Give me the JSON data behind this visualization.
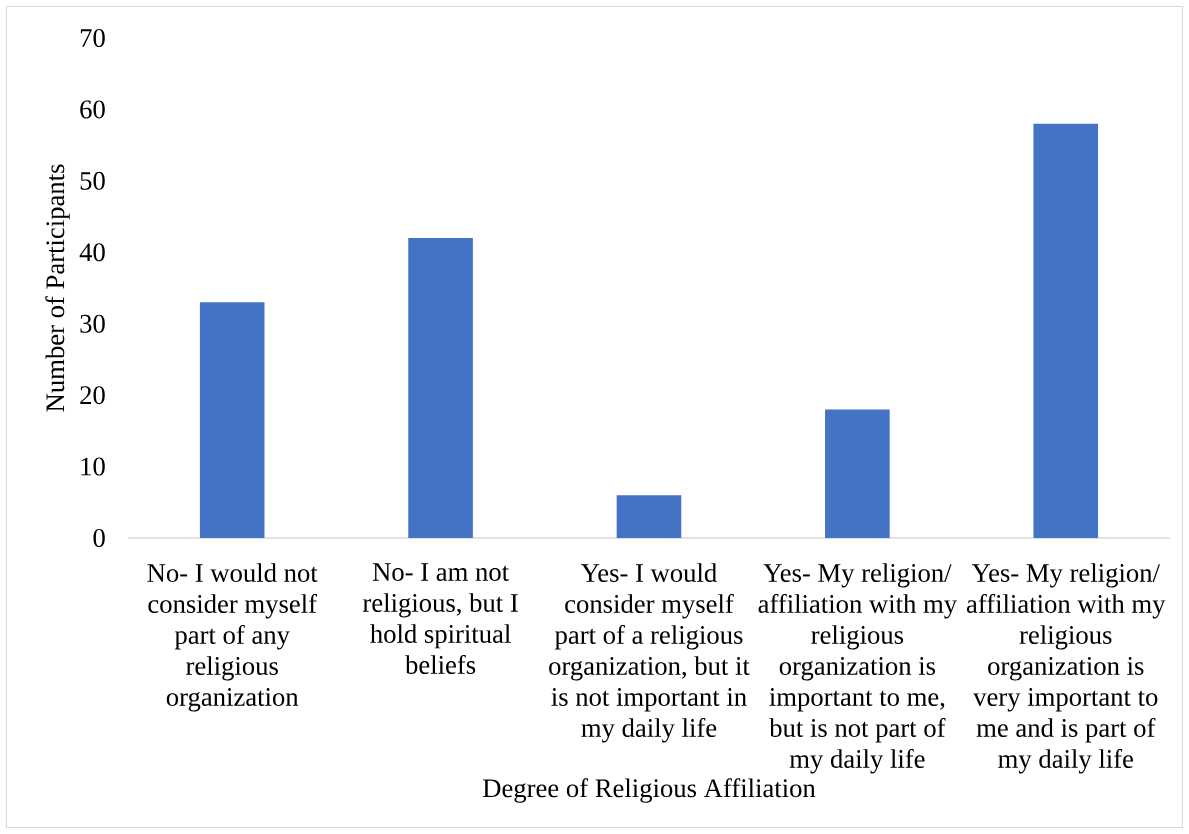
{
  "chart_data": {
    "type": "bar",
    "xlabel": "Degree of Religious Affiliation",
    "ylabel": "Number of Participants",
    "categories": [
      "No- I would not consider myself part of any religious organization",
      "No- I am not religious, but I hold spiritual beliefs",
      "Yes- I would consider myself part of a religious organization, but it is not important in my daily life",
      "Yes- My religion/ affiliation with my religious organization is important to me, but is not part of my daily life",
      "Yes- My religion/ affiliation with my religious organization is very important to me and is part of my daily life"
    ],
    "values": [
      33,
      42,
      6,
      18,
      58
    ],
    "color": "#4472c4",
    "ylim": [
      0,
      70
    ],
    "yticks": [
      0,
      10,
      20,
      30,
      40,
      50,
      60,
      70
    ]
  }
}
